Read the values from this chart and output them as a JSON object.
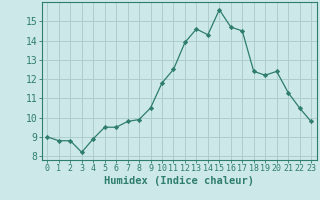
{
  "x": [
    0,
    1,
    2,
    3,
    4,
    5,
    6,
    7,
    8,
    9,
    10,
    11,
    12,
    13,
    14,
    15,
    16,
    17,
    18,
    19,
    20,
    21,
    22,
    23
  ],
  "y": [
    9.0,
    8.8,
    8.8,
    8.2,
    8.9,
    9.5,
    9.5,
    9.8,
    9.9,
    10.5,
    11.8,
    12.5,
    13.9,
    14.6,
    14.3,
    15.6,
    14.7,
    14.5,
    12.4,
    12.2,
    12.4,
    11.3,
    10.5,
    9.8
  ],
  "line_color": "#2e7d6e",
  "marker": "D",
  "marker_size": 2.2,
  "bg_color": "#cce8e8",
  "grid_color": "#aecece",
  "xlabel": "Humidex (Indice chaleur)",
  "xlim": [
    -0.5,
    23.5
  ],
  "ylim": [
    7.8,
    16.0
  ],
  "yticks": [
    8,
    9,
    10,
    11,
    12,
    13,
    14,
    15
  ],
  "xticks": [
    0,
    1,
    2,
    3,
    4,
    5,
    6,
    7,
    8,
    9,
    10,
    11,
    12,
    13,
    14,
    15,
    16,
    17,
    18,
    19,
    20,
    21,
    22,
    23
  ],
  "tick_color": "#2e7d6e",
  "tick_label_color": "#2e7d6e",
  "axis_color": "#2e7d6e",
  "xlabel_color": "#2e7d6e",
  "xlabel_fontsize": 7.5,
  "ytick_fontsize": 7,
  "xtick_fontsize": 6
}
